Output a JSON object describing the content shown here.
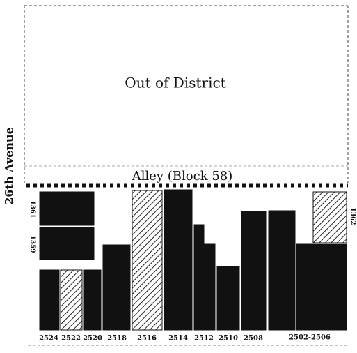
{
  "map": {
    "regions": {
      "out_of_district": "Out of District",
      "alley": "Alley (Block 58)",
      "street": "26th Avenue"
    },
    "side_labels": [
      "1361",
      "1359",
      "1362"
    ],
    "lots": [
      "2524",
      "2522",
      "2520",
      "2518",
      "2516",
      "2514",
      "2512",
      "2510",
      "2508",
      "2502-2506"
    ]
  }
}
